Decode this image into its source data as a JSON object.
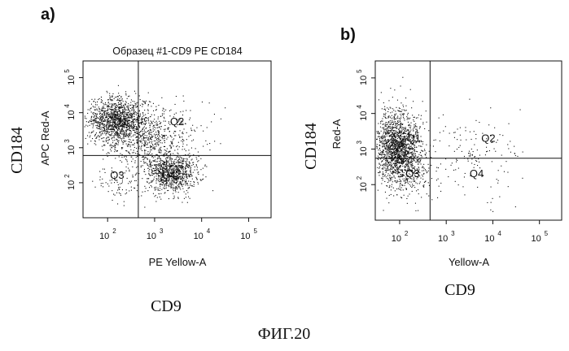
{
  "figure_caption": "ФИГ.20",
  "chart_data": [
    {
      "type": "scatter",
      "panel_label": "a)",
      "title": "Образец #1-CD9 PE CD184",
      "xlabel": "PE Yellow-A",
      "ylabel": "APC Red-A",
      "outer_xlabel": "CD9",
      "outer_ylabel": "CD184",
      "x_scale": "log",
      "y_scale": "log",
      "xlim": [
        30,
        300000
      ],
      "ylim": [
        10,
        300000
      ],
      "x_ticks": [
        {
          "value": 100,
          "base": "10",
          "exp": "2"
        },
        {
          "value": 1000,
          "base": "10",
          "exp": "3"
        },
        {
          "value": 10000,
          "base": "10",
          "exp": "4"
        },
        {
          "value": 100000,
          "base": "10",
          "exp": "5"
        }
      ],
      "y_ticks": [
        {
          "value": 100,
          "base": "10",
          "exp": "2"
        },
        {
          "value": 1000,
          "base": "10",
          "exp": "3"
        },
        {
          "value": 10000,
          "base": "10",
          "exp": "4"
        },
        {
          "value": 100000,
          "base": "10",
          "exp": "5"
        }
      ],
      "gate": {
        "x": 450,
        "y": 600
      },
      "quadrants": [
        {
          "label": "Q1",
          "x": 190,
          "y": 5500
        },
        {
          "label": "Q2",
          "x": 3000,
          "y": 5500
        },
        {
          "label": "Q3",
          "x": 160,
          "y": 160
        },
        {
          "label": "Q4",
          "x": 2000,
          "y": 160
        }
      ],
      "clusters": [
        {
          "cx": 160,
          "cy": 6000,
          "sx": 0.32,
          "sy": 0.33,
          "n": 1300
        },
        {
          "cx": 2200,
          "cy": 200,
          "sx": 0.27,
          "sy": 0.27,
          "n": 900
        },
        {
          "cx": 700,
          "cy": 1500,
          "sx": 0.38,
          "sy": 0.42,
          "n": 500
        },
        {
          "cx": 200,
          "cy": 120,
          "sx": 0.35,
          "sy": 0.3,
          "n": 90
        },
        {
          "cx": 3000,
          "cy": 3000,
          "sx": 0.4,
          "sy": 0.5,
          "n": 120
        }
      ],
      "seed": 7
    },
    {
      "type": "scatter",
      "panel_label": "b)",
      "title": "",
      "xlabel": "Yellow-A",
      "ylabel": "Red-A",
      "outer_xlabel": "CD9",
      "outer_ylabel": "CD184",
      "x_scale": "log",
      "y_scale": "log",
      "xlim": [
        30,
        300000
      ],
      "ylim": [
        10,
        300000
      ],
      "x_ticks": [
        {
          "value": 100,
          "base": "10",
          "exp": "2"
        },
        {
          "value": 1000,
          "base": "10",
          "exp": "3"
        },
        {
          "value": 10000,
          "base": "10",
          "exp": "4"
        },
        {
          "value": 100000,
          "base": "10",
          "exp": "5"
        }
      ],
      "y_ticks": [
        {
          "value": 100,
          "base": "10",
          "exp": "2"
        },
        {
          "value": 1000,
          "base": "10",
          "exp": "3"
        },
        {
          "value": 10000,
          "base": "10",
          "exp": "4"
        },
        {
          "value": 100000,
          "base": "10",
          "exp": "5"
        }
      ],
      "gate": {
        "x": 450,
        "y": 550
      },
      "quadrants": [
        {
          "label": "Q1",
          "x": 200,
          "y": 2000
        },
        {
          "label": "Q2",
          "x": 8000,
          "y": 2000
        },
        {
          "label": "Q3",
          "x": 190,
          "y": 200
        },
        {
          "label": "Q4",
          "x": 4500,
          "y": 200
        }
      ],
      "clusters": [
        {
          "cx": 90,
          "cy": 1200,
          "sx": 0.24,
          "sy": 0.48,
          "n": 1600
        },
        {
          "cx": 130,
          "cy": 250,
          "sx": 0.3,
          "sy": 0.4,
          "n": 250
        },
        {
          "cx": 2500,
          "cy": 600,
          "sx": 0.55,
          "sy": 0.55,
          "n": 160
        }
      ],
      "seed": 13
    }
  ]
}
